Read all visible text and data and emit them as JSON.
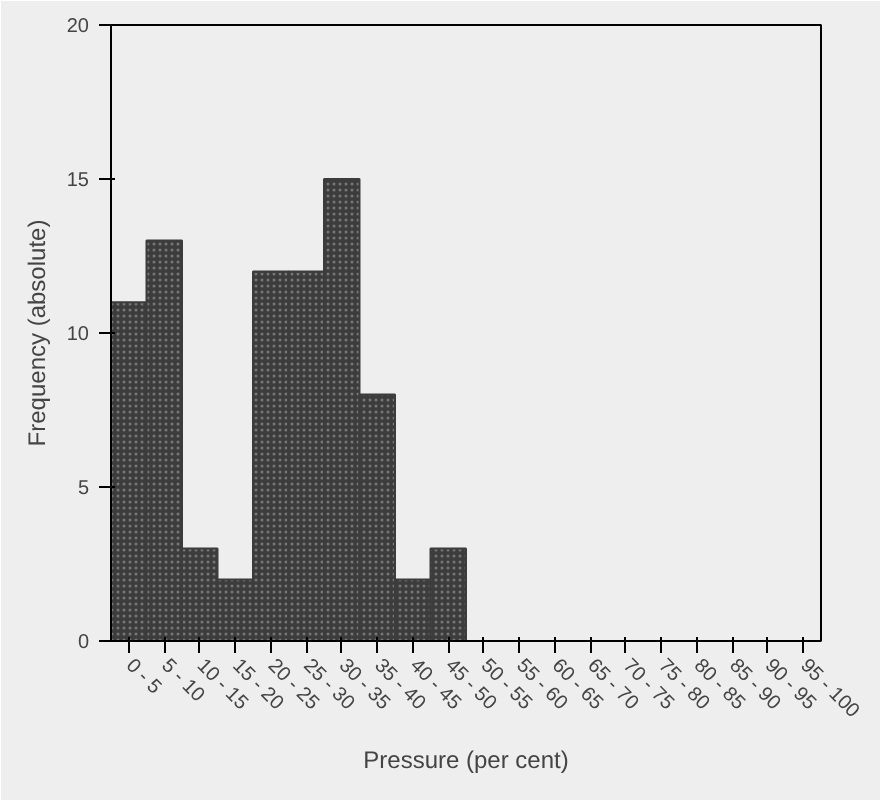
{
  "chart_data": {
    "type": "bar",
    "xlabel": "Pressure (per cent)",
    "ylabel": "Frequency (absolute)",
    "categories": [
      "0 - 5",
      "5 - 10",
      "10 - 15",
      "15 - 20",
      "20 - 25",
      "25 - 30",
      "30 - 35",
      "35 - 40",
      "40 - 45",
      "45 - 50",
      "50 - 55",
      "55 - 60",
      "60 - 65",
      "65 - 70",
      "70 - 75",
      "75 - 80",
      "80 - 85",
      "85 - 90",
      "90 - 95",
      "95 - 100"
    ],
    "values": [
      11,
      13,
      3,
      2,
      12,
      12,
      15,
      8,
      2,
      3,
      0,
      0,
      0,
      0,
      0,
      0,
      0,
      0,
      0,
      0
    ],
    "color": "#3c3c3c",
    "ylim": [
      0,
      20
    ],
    "yticks": [
      0,
      5,
      10,
      15,
      20
    ],
    "grid": false
  }
}
